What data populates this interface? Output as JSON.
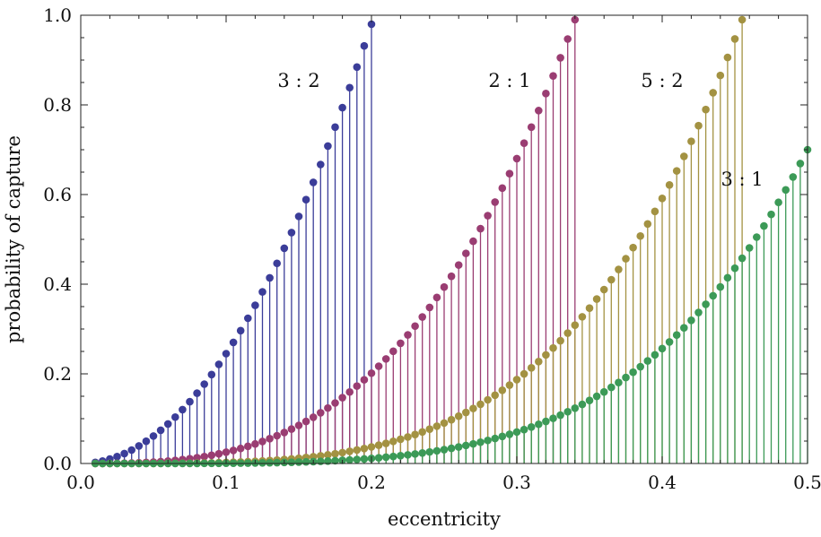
{
  "chart_data": {
    "type": "scatter",
    "style": "stem plot with dot markers",
    "xlabel": "eccentricity",
    "ylabel": "probability of capture",
    "xlim": [
      0,
      0.5
    ],
    "ylim": [
      0,
      1.0
    ],
    "x_ticks": [
      "0.0",
      "0.1",
      "0.2",
      "0.3",
      "0.4",
      "0.5"
    ],
    "y_ticks": [
      "0.0",
      "0.2",
      "0.4",
      "0.6",
      "0.8",
      "1.0"
    ],
    "x_step": 0.005,
    "x_start": 0.01,
    "series": [
      {
        "name": "3 : 2",
        "color": "#3b3d99",
        "x_end": 0.2,
        "exponent": 2,
        "end_value": 0.98,
        "label_position": [
          0.15,
          0.84
        ]
      },
      {
        "name": "2 : 1",
        "color": "#9a3d72",
        "x_end": 0.34,
        "exponent": 3,
        "end_value": 0.99,
        "label_position": [
          0.295,
          0.84
        ]
      },
      {
        "name": "5 : 2",
        "color": "#a39242",
        "x_end": 0.455,
        "exponent": 4,
        "end_value": 0.99,
        "label_position": [
          0.4,
          0.84
        ]
      },
      {
        "name": "3 : 1",
        "color": "#3c9a57",
        "x_end": 0.5,
        "exponent": 4.5,
        "end_value": 0.7,
        "label_position": [
          0.455,
          0.62
        ]
      }
    ],
    "grid": false
  }
}
